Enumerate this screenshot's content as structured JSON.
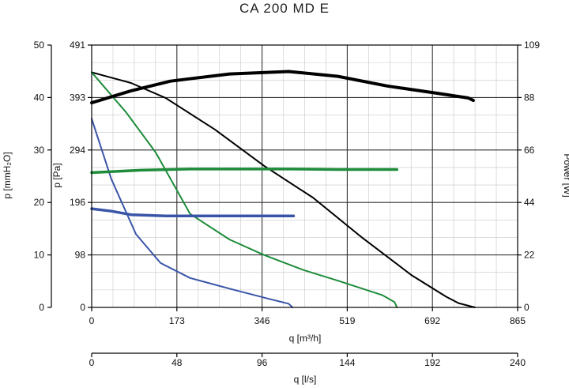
{
  "chart_data": {
    "type": "line",
    "title": "CA 200 MD E",
    "x_axis": {
      "label": "q [m³/h]",
      "range": [
        0,
        865
      ],
      "ticks": [
        "0",
        "173",
        "346",
        "519",
        "692",
        "865"
      ]
    },
    "x2_axis": {
      "label": "q [l/s]",
      "range": [
        0,
        240
      ],
      "ticks": [
        "0",
        "48",
        "96",
        "144",
        "192",
        "240"
      ]
    },
    "y_left_outer": {
      "label": "p [mmH₂O]",
      "range": [
        0,
        50
      ],
      "ticks": [
        "0",
        "10",
        "20",
        "30",
        "40",
        "50"
      ]
    },
    "y_left_inner": {
      "label": "p [Pa]",
      "range": [
        0,
        491
      ],
      "ticks": [
        "0",
        "98",
        "196",
        "294",
        "393",
        "491"
      ]
    },
    "y_right": {
      "label": "Power [W]",
      "range": [
        0,
        109
      ],
      "ticks": [
        "0",
        "22",
        "44",
        "66",
        "88",
        "109"
      ]
    },
    "grid": true,
    "series": [
      {
        "id": "pressure-black",
        "axis": "pa",
        "color": "#000000",
        "width": 2,
        "points": [
          [
            0,
            440
          ],
          [
            80,
            420
          ],
          [
            150,
            392
          ],
          [
            250,
            333
          ],
          [
            350,
            265
          ],
          [
            450,
            205
          ],
          [
            550,
            130
          ],
          [
            650,
            60
          ],
          [
            720,
            20
          ],
          [
            745,
            8
          ],
          [
            778,
            0
          ]
        ]
      },
      {
        "id": "pressure-green",
        "axis": "pa",
        "color": "#1e8c3a",
        "width": 2,
        "points": [
          [
            0,
            440
          ],
          [
            70,
            365
          ],
          [
            130,
            290
          ],
          [
            200,
            175
          ],
          [
            280,
            127
          ],
          [
            350,
            98
          ],
          [
            430,
            70
          ],
          [
            500,
            50
          ],
          [
            590,
            23
          ],
          [
            615,
            10
          ],
          [
            620,
            0
          ]
        ]
      },
      {
        "id": "pressure-blue",
        "axis": "pa",
        "color": "#3a55a8",
        "width": 2,
        "points": [
          [
            0,
            353
          ],
          [
            40,
            240
          ],
          [
            90,
            137
          ],
          [
            140,
            83
          ],
          [
            200,
            55
          ],
          [
            280,
            35
          ],
          [
            360,
            16
          ],
          [
            400,
            7
          ],
          [
            408,
            0
          ]
        ]
      },
      {
        "id": "power-black",
        "axis": "w",
        "color": "#000000",
        "width": 4,
        "points": [
          [
            0,
            85
          ],
          [
            80,
            90
          ],
          [
            160,
            94
          ],
          [
            280,
            97
          ],
          [
            400,
            98
          ],
          [
            500,
            96
          ],
          [
            600,
            92
          ],
          [
            700,
            89
          ],
          [
            765,
            87
          ],
          [
            775,
            86
          ]
        ]
      },
      {
        "id": "power-green",
        "axis": "w",
        "color": "#1e8c3a",
        "width": 3.5,
        "points": [
          [
            0,
            56
          ],
          [
            100,
            57
          ],
          [
            200,
            57.5
          ],
          [
            400,
            57.5
          ],
          [
            500,
            57.3
          ],
          [
            620,
            57.3
          ]
        ]
      },
      {
        "id": "power-blue",
        "axis": "w",
        "color": "#3a55a8",
        "width": 3.5,
        "points": [
          [
            0,
            41
          ],
          [
            40,
            40
          ],
          [
            80,
            38.5
          ],
          [
            150,
            38
          ],
          [
            300,
            38
          ],
          [
            410,
            38
          ]
        ]
      }
    ]
  }
}
